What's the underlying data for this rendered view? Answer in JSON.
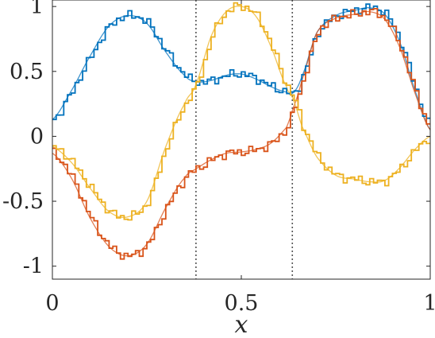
{
  "chart_data": {
    "type": "line",
    "title": "",
    "xlabel": "x",
    "ylabel": "",
    "xlim": [
      0,
      1
    ],
    "ylim": [
      -1.1,
      1.05
    ],
    "xticks": [
      0,
      0.5,
      1
    ],
    "xtick_labels": [
      "0",
      "0.5",
      "1"
    ],
    "yticks": [
      -1,
      -0.5,
      0,
      0.5,
      1
    ],
    "ytick_labels": [
      "-1",
      "-0.5",
      "0",
      "0.5",
      "1"
    ],
    "grid": false,
    "legend": "none",
    "vlines": [
      0.38,
      0.635
    ],
    "x": [
      0,
      0.05,
      0.1,
      0.15,
      0.2,
      0.25,
      0.3,
      0.35,
      0.38,
      0.42,
      0.46,
      0.5,
      0.54,
      0.58,
      0.62,
      0.635,
      0.66,
      0.7,
      0.75,
      0.8,
      0.84,
      0.88,
      0.92,
      0.96,
      1
    ],
    "series": [
      {
        "color": "#0072BD",
        "values": [
          0.13,
          0.35,
          0.62,
          0.85,
          0.93,
          0.87,
          0.65,
          0.47,
          0.42,
          0.43,
          0.47,
          0.48,
          0.44,
          0.38,
          0.34,
          0.33,
          0.46,
          0.8,
          0.93,
          0.97,
          0.99,
          0.94,
          0.72,
          0.35,
          0.05
        ]
      },
      {
        "color": "#D95319",
        "values": [
          -0.13,
          -0.32,
          -0.63,
          -0.85,
          -0.92,
          -0.83,
          -0.55,
          -0.32,
          -0.25,
          -0.18,
          -0.13,
          -0.12,
          -0.1,
          -0.05,
          0.07,
          0.2,
          0.43,
          0.8,
          0.91,
          0.94,
          0.96,
          0.9,
          0.68,
          0.33,
          0.05
        ]
      },
      {
        "color": "#EDB120",
        "values": [
          -0.08,
          -0.2,
          -0.4,
          -0.58,
          -0.62,
          -0.5,
          -0.08,
          0.25,
          0.4,
          0.77,
          0.96,
          1.0,
          0.92,
          0.68,
          0.38,
          0.3,
          0.08,
          -0.16,
          -0.3,
          -0.33,
          -0.35,
          -0.34,
          -0.24,
          -0.1,
          0.0
        ]
      }
    ]
  }
}
